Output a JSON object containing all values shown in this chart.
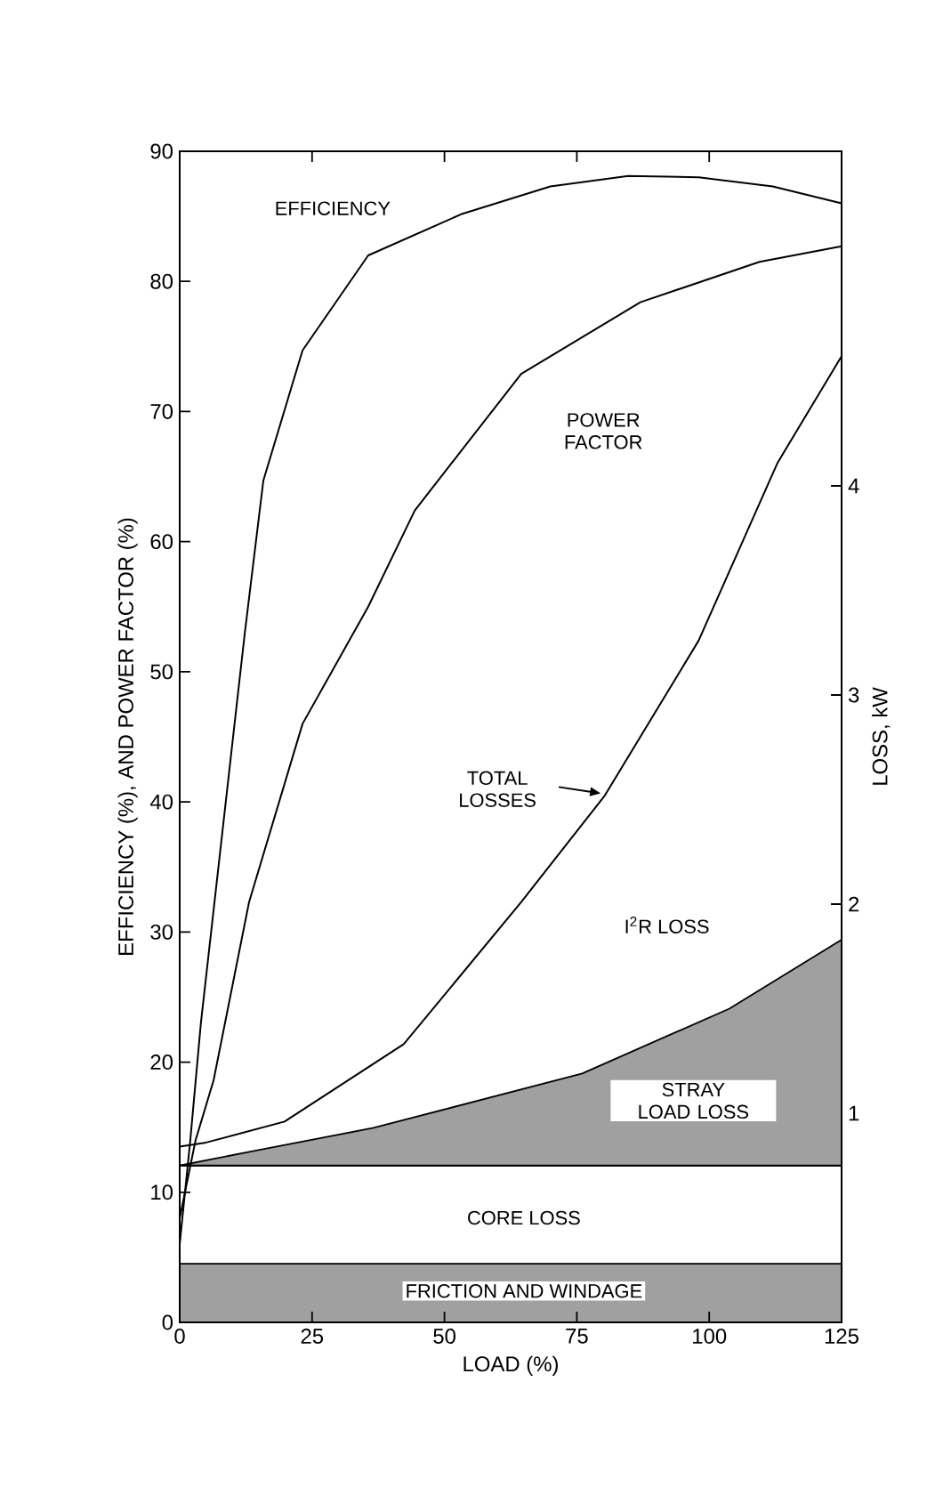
{
  "chart_data": {
    "type": "line",
    "xlabel": "LOAD (%)",
    "ylabel": "EFFICIENCY (%), AND POWER FACTOR (%)",
    "y2label": "LOSS, kW",
    "xlim": [
      0,
      125
    ],
    "xticks": [
      0,
      25,
      50,
      75,
      100,
      125
    ],
    "ylim": [
      0,
      90
    ],
    "yticks": [
      0,
      10,
      20,
      30,
      40,
      50,
      60,
      70,
      80,
      90
    ],
    "y2lim": [
      0,
      5.6
    ],
    "y2ticks": [
      1,
      2,
      3,
      4
    ],
    "stacked": true,
    "series": [
      {
        "name": "EFFICIENCY",
        "color": "#000000",
        "x": [
          0,
          2,
          4,
          8.7,
          12.3,
          15.8,
          23.2,
          35.6,
          53.4,
          70,
          84.7,
          98,
          112,
          125
        ],
        "values": [
          6,
          14,
          23,
          40,
          53,
          64.7,
          74.7,
          82,
          85.2,
          87.3,
          88.1,
          88,
          87.3,
          86
        ]
      },
      {
        "name": "POWER FACTOR",
        "color": "#000000",
        "x": [
          0,
          3,
          6.4,
          13.1,
          23.2,
          35.6,
          44.4,
          64.5,
          87,
          109.5,
          125
        ],
        "values": [
          8,
          14,
          18.6,
          32.3,
          46,
          55,
          62.4,
          72.9,
          78.4,
          81.5,
          82.7
        ]
      },
      {
        "name": "TOTAL LOSSES",
        "color": "#000000",
        "axis": "y2",
        "x": [
          0,
          5,
          19.8,
          42.3,
          64.5,
          80.3,
          98,
          112.9,
          125
        ],
        "values": [
          0.84,
          0.86,
          0.96,
          1.33,
          2.01,
          2.52,
          3.26,
          4.11,
          4.62
        ]
      },
      {
        "name": "FRICTION AND WINDAGE",
        "type": "area",
        "color": "#a0a0a0",
        "axis": "y2",
        "x": [
          0,
          14,
          36.6,
          76,
          103.8,
          125
        ],
        "values": [
          0.28,
          0.28,
          0.28,
          0.28,
          0.28,
          0.28
        ]
      },
      {
        "name": "CORE LOSS",
        "type": "area",
        "color": "#ffffff",
        "axis": "y2",
        "x": [
          0,
          14,
          36.6,
          76,
          103.8,
          125
        ],
        "values": [
          0.47,
          0.47,
          0.47,
          0.47,
          0.47,
          0.47
        ]
      },
      {
        "name": "STRAY LOAD LOSS",
        "type": "area",
        "color": "#a0a0a0",
        "axis": "y2",
        "x": [
          0,
          14,
          36.6,
          76,
          103.8,
          125
        ],
        "values": [
          0,
          0.07,
          0.18,
          0.44,
          0.75,
          1.08
        ]
      }
    ],
    "annotations": [
      "I$^{2}$R LOSS"
    ]
  }
}
